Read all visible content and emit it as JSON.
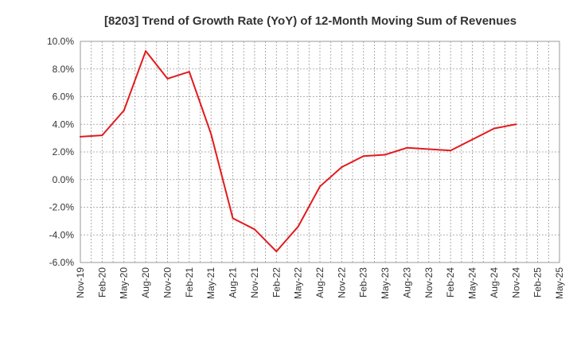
{
  "chart_data": {
    "type": "line",
    "title": "[8203]  Trend of Growth Rate (YoY) of 12-Month Moving Sum of Revenues",
    "xlabel": "",
    "ylabel": "",
    "categories": [
      "Nov-19",
      "Feb-20",
      "May-20",
      "Aug-20",
      "Nov-20",
      "Feb-21",
      "May-21",
      "Aug-21",
      "Nov-21",
      "Feb-22",
      "May-22",
      "Aug-22",
      "Nov-22",
      "Feb-23",
      "May-23",
      "Aug-23",
      "Nov-23",
      "Feb-24",
      "May-24",
      "Aug-24",
      "Nov-24",
      "Feb-25",
      "May-25"
    ],
    "y_tick_labels": [
      "10.0%",
      "8.0%",
      "6.0%",
      "4.0%",
      "2.0%",
      "0.0%",
      "-2.0%",
      "-4.0%",
      "-6.0%"
    ],
    "ylim": [
      -6,
      10
    ],
    "y_ticks": [
      10,
      8,
      6,
      4,
      2,
      0,
      -2,
      -4,
      -6
    ],
    "grid": true,
    "grid_style": "dotted",
    "series": [
      {
        "color": "#e31a1c",
        "points": [
          {
            "x": "Nov-19",
            "y": 3.1
          },
          {
            "x": "Feb-20",
            "y": 3.2
          },
          {
            "x": "May-20",
            "y": 5.0
          },
          {
            "x": "Aug-20",
            "y": 9.3
          },
          {
            "x": "Nov-20",
            "y": 7.3
          },
          {
            "x": "Feb-21",
            "y": 7.8
          },
          {
            "x": "May-21",
            "y": 3.3
          },
          {
            "x": "Aug-21",
            "y": -2.8
          },
          {
            "x": "Nov-21",
            "y": -3.6
          },
          {
            "x": "Feb-22",
            "y": -5.2
          },
          {
            "x": "May-22",
            "y": -3.4
          },
          {
            "x": "Aug-22",
            "y": -0.5
          },
          {
            "x": "Nov-22",
            "y": 0.9
          },
          {
            "x": "Feb-23",
            "y": 1.7
          },
          {
            "x": "May-23",
            "y": 1.8
          },
          {
            "x": "Aug-23",
            "y": 2.3
          },
          {
            "x": "Nov-23",
            "y": 2.2
          },
          {
            "x": "Feb-24",
            "y": 2.1
          },
          {
            "x": "May-24",
            "y": 2.9
          },
          {
            "x": "Aug-24",
            "y": 3.7
          },
          {
            "x": "Nov-24",
            "y": 4.0
          }
        ]
      }
    ]
  }
}
